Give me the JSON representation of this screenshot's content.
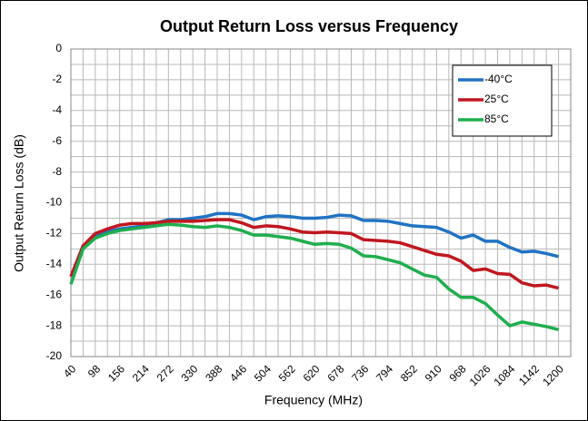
{
  "chart_data": {
    "type": "line",
    "title": "Output Return Loss versus Frequency",
    "xlabel": "Frequency (MHz)",
    "ylabel": "Output Return Loss (dB)",
    "x": [
      40,
      69,
      98,
      127,
      156,
      185,
      214,
      243,
      272,
      301,
      330,
      359,
      388,
      417,
      446,
      475,
      504,
      533,
      562,
      591,
      620,
      649,
      678,
      707,
      736,
      765,
      794,
      823,
      852,
      881,
      910,
      939,
      968,
      997,
      1026,
      1055,
      1084,
      1113,
      1142,
      1171,
      1200
    ],
    "series": [
      {
        "name": "-40°C",
        "color": "#1f73c4",
        "values": [
          -14.8,
          -12.8,
          -12.2,
          -11.9,
          -11.7,
          -11.6,
          -11.5,
          -11.3,
          -11.1,
          -11.1,
          -11.0,
          -10.9,
          -10.7,
          -10.7,
          -10.8,
          -11.1,
          -10.9,
          -10.85,
          -10.9,
          -11.0,
          -11.0,
          -10.95,
          -10.8,
          -10.85,
          -11.15,
          -11.15,
          -11.2,
          -11.35,
          -11.5,
          -11.55,
          -11.6,
          -11.9,
          -12.3,
          -12.1,
          -12.5,
          -12.5,
          -12.9,
          -13.2,
          -13.15,
          -13.3,
          -13.5
        ]
      },
      {
        "name": "25°C",
        "color": "#c0171f",
        "values": [
          -14.8,
          -12.8,
          -12.0,
          -11.7,
          -11.45,
          -11.35,
          -11.35,
          -11.3,
          -11.2,
          -11.2,
          -11.2,
          -11.15,
          -11.1,
          -11.1,
          -11.3,
          -11.6,
          -11.5,
          -11.55,
          -11.7,
          -11.9,
          -11.95,
          -11.9,
          -11.95,
          -12.0,
          -12.4,
          -12.45,
          -12.5,
          -12.6,
          -12.85,
          -13.1,
          -13.35,
          -13.45,
          -13.8,
          -14.4,
          -14.3,
          -14.6,
          -14.65,
          -15.2,
          -15.4,
          -15.35,
          -15.55
        ]
      },
      {
        "name": "85°C",
        "color": "#1fae4e",
        "values": [
          -15.3,
          -13.0,
          -12.3,
          -12.0,
          -11.8,
          -11.7,
          -11.6,
          -11.5,
          -11.4,
          -11.45,
          -11.55,
          -11.6,
          -11.5,
          -11.6,
          -11.8,
          -12.1,
          -12.1,
          -12.2,
          -12.3,
          -12.5,
          -12.7,
          -12.65,
          -12.7,
          -12.95,
          -13.45,
          -13.5,
          -13.7,
          -13.9,
          -14.3,
          -14.7,
          -14.85,
          -15.6,
          -16.15,
          -16.15,
          -16.55,
          -17.3,
          -18.0,
          -17.75,
          -17.9,
          -18.05,
          -18.25
        ]
      }
    ],
    "xlim": [
      40,
      1229
    ],
    "xticks": [
      40,
      98,
      156,
      214,
      272,
      330,
      388,
      446,
      504,
      562,
      620,
      678,
      736,
      794,
      852,
      910,
      968,
      1026,
      1084,
      1142,
      1200
    ],
    "xminorticks": [
      69,
      127,
      185,
      243,
      301,
      359,
      417,
      475,
      533,
      591,
      649,
      707,
      765,
      823,
      881,
      939,
      997,
      1055,
      1113,
      1171
    ],
    "ylim": [
      -20,
      0
    ],
    "yticks": [
      -20,
      -18,
      -16,
      -14,
      -12,
      -10,
      -8,
      -6,
      -4,
      -2,
      0
    ],
    "yminorticks": [
      -19,
      -17,
      -15,
      -13,
      -11,
      -9,
      -7,
      -5,
      -3,
      -1
    ],
    "grid": true,
    "legend": "upper right"
  }
}
